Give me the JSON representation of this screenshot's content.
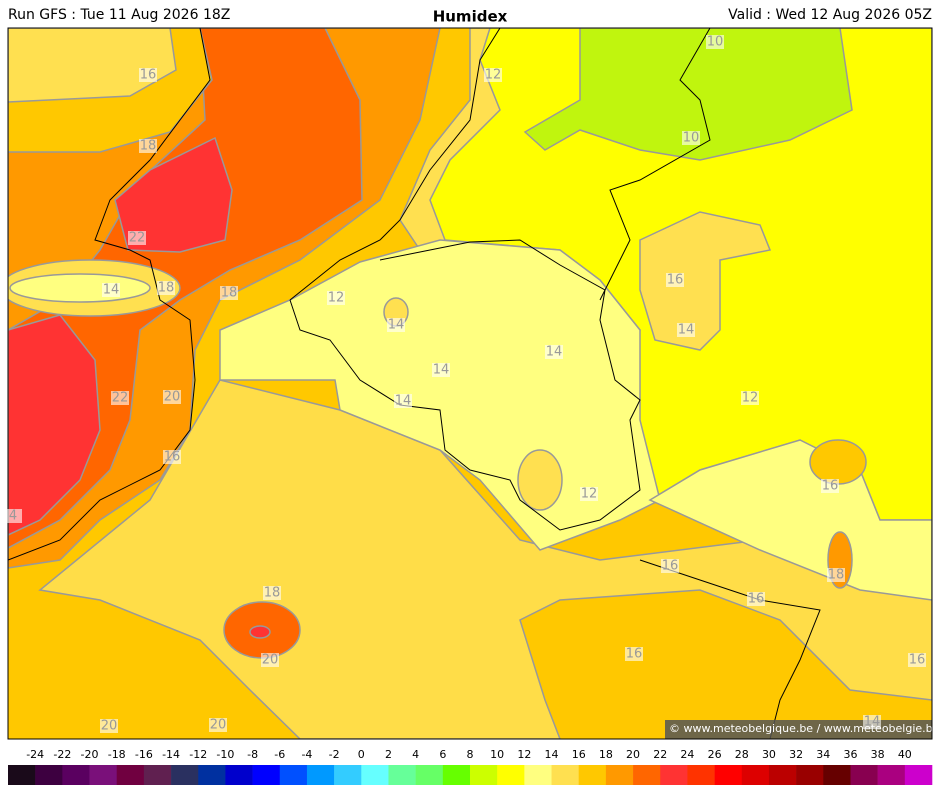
{
  "header": {
    "run": "Run GFS : Tue 11 Aug 2026 18Z",
    "title": "Humidex",
    "valid": "Valid : Wed 12 Aug 2026 05Z"
  },
  "contour_labels": [
    16,
    18,
    22,
    14,
    18,
    18,
    12,
    14,
    14,
    14,
    14,
    12,
    10,
    10,
    16,
    14,
    12,
    22,
    20,
    16,
    4,
    12,
    16,
    16,
    18,
    16,
    16,
    16,
    18,
    20,
    20,
    20,
    14
  ],
  "copyright": "© www.meteobelgique.be / www.meteobelgie.be",
  "colorbar": {
    "ticks": [
      -24,
      -22,
      -20,
      -18,
      -16,
      -14,
      -12,
      -10,
      -8,
      -6,
      -4,
      -2,
      0,
      2,
      4,
      6,
      8,
      10,
      12,
      14,
      16,
      18,
      20,
      22,
      24,
      26,
      28,
      30,
      32,
      34,
      36,
      38,
      40
    ],
    "colors": [
      "#1a0a1a",
      "#3d0040",
      "#5a0060",
      "#7a107a",
      "#700040",
      "#602050",
      "#2a3060",
      "#0030a0",
      "#0000cc",
      "#0000ff",
      "#0050ff",
      "#0099ff",
      "#33ccff",
      "#66ffff",
      "#66ff99",
      "#66ff66",
      "#66ff00",
      "#ccff00",
      "#ffff00",
      "#ffff80",
      "#ffe050",
      "#ffc800",
      "#ff9900",
      "#ff6600",
      "#ff3333",
      "#ff3300",
      "#ff0000",
      "#dd0000",
      "#bb0000",
      "#990000",
      "#660000",
      "#880050",
      "#aa0080",
      "#cc00cc"
    ]
  }
}
